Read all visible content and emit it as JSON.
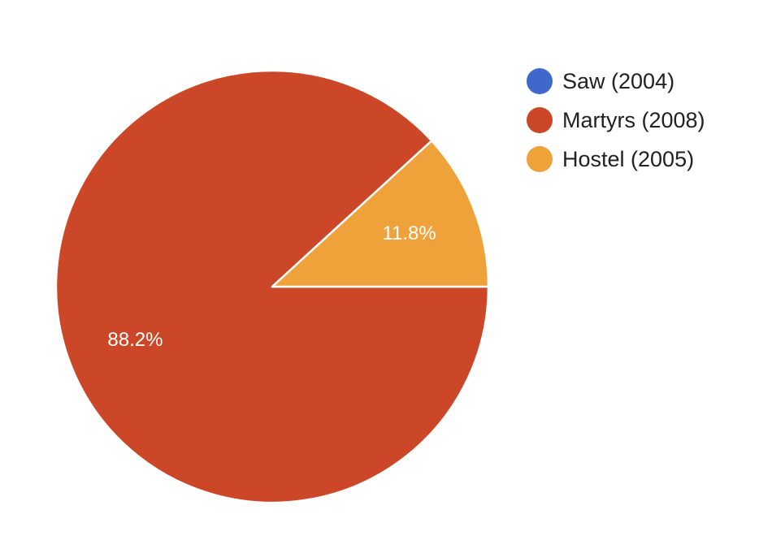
{
  "chart_data": {
    "type": "pie",
    "categories": [
      "Saw (2004)",
      "Martyrs (2008)",
      "Hostel (2005)"
    ],
    "values": [
      0,
      88.2,
      11.8
    ],
    "slice_labels": [
      "",
      "88.2%",
      "11.8%"
    ],
    "colors": [
      "#3F67CC",
      "#CB4728",
      "#EFA13A"
    ],
    "legend_position": "right",
    "title": ""
  }
}
